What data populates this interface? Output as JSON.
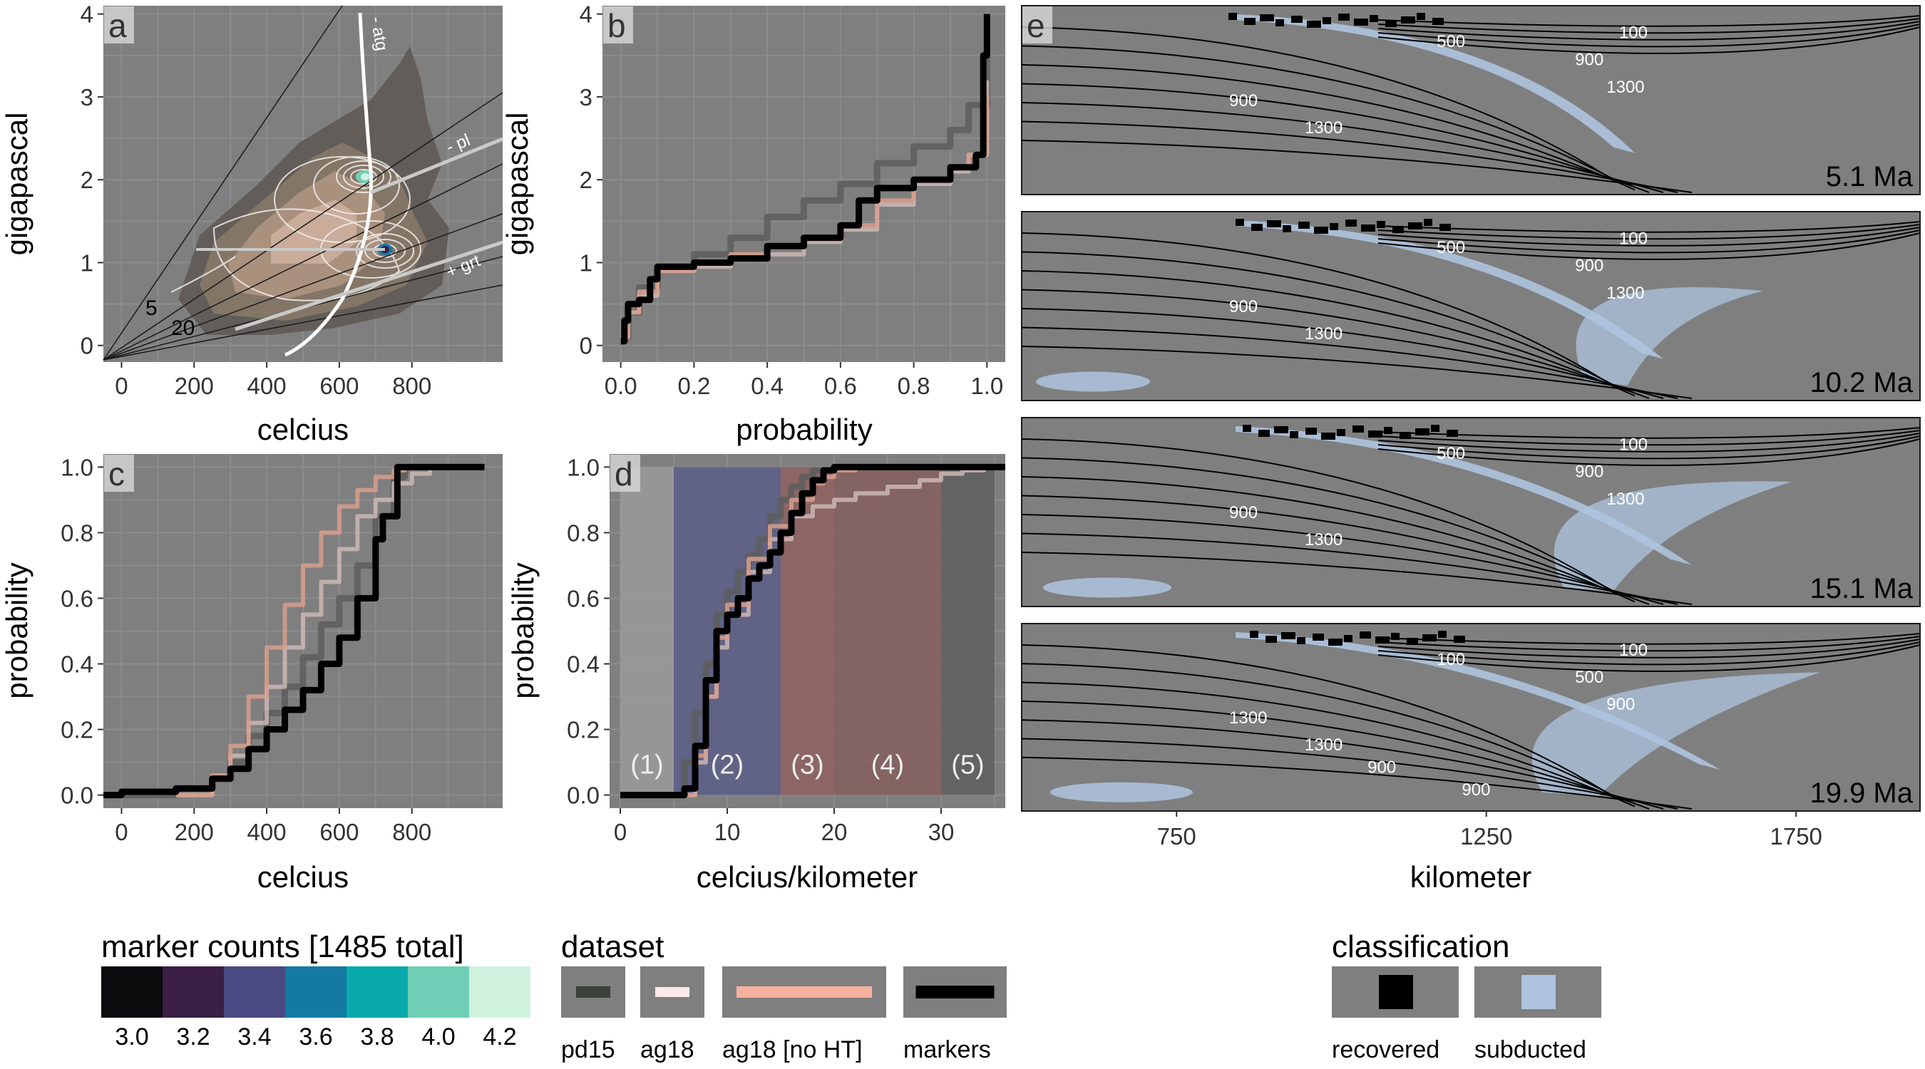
{
  "chart_data": [
    {
      "panel": "a",
      "type": "heatmap",
      "xlabel": "celcius",
      "ylabel": "gigapascal",
      "xlim": [
        -50,
        1050
      ],
      "ylim": [
        -0.2,
        4.1
      ],
      "xticks": [
        0,
        200,
        400,
        600,
        800
      ],
      "yticks": [
        0,
        1,
        2,
        3,
        4
      ],
      "grid": true,
      "reaction_labels": [
        "- atg",
        "- pl",
        "+ grt"
      ],
      "geotherm_labels": [
        "5",
        "20"
      ],
      "density_peaks": [
        {
          "x": 680,
          "y": 2.1
        },
        {
          "x": 720,
          "y": 1.15
        }
      ]
    },
    {
      "panel": "b",
      "type": "line",
      "xlabel": "probability",
      "ylabel": "gigapascal",
      "xlim": [
        -0.05,
        1.05
      ],
      "ylim": [
        -0.2,
        4.1
      ],
      "xticks": [
        0.0,
        0.2,
        0.4,
        0.6,
        0.8,
        1.0
      ],
      "yticks": [
        0,
        1,
        2,
        3,
        4
      ],
      "grid": true,
      "series": [
        {
          "name": "pd15",
          "x": [
            0.0,
            0.02,
            0.05,
            0.1,
            0.2,
            0.3,
            0.4,
            0.5,
            0.6,
            0.7,
            0.8,
            0.9,
            0.95,
            1.0
          ],
          "y": [
            0.1,
            0.4,
            0.7,
            0.95,
            1.1,
            1.3,
            1.55,
            1.75,
            1.95,
            2.2,
            2.4,
            2.6,
            2.9,
            3.7
          ]
        },
        {
          "name": "ag18",
          "x": [
            0.0,
            0.02,
            0.05,
            0.1,
            0.2,
            0.3,
            0.4,
            0.5,
            0.6,
            0.7,
            0.8,
            0.9,
            0.95,
            1.0
          ],
          "y": [
            0.1,
            0.4,
            0.6,
            0.9,
            0.95,
            1.05,
            1.1,
            1.25,
            1.4,
            1.7,
            1.95,
            2.1,
            2.3,
            3.2
          ]
        },
        {
          "name": "ag18 [no HT]",
          "x": [
            0.0,
            0.02,
            0.05,
            0.1,
            0.2,
            0.3,
            0.4,
            0.5,
            0.6,
            0.7,
            0.8,
            0.9,
            0.95,
            1.0
          ],
          "y": [
            0.1,
            0.4,
            0.65,
            0.9,
            1.0,
            1.1,
            1.2,
            1.3,
            1.45,
            1.75,
            2.0,
            2.15,
            2.3,
            3.0
          ]
        },
        {
          "name": "markers",
          "x": [
            0.0,
            0.01,
            0.02,
            0.05,
            0.08,
            0.1,
            0.2,
            0.3,
            0.4,
            0.5,
            0.6,
            0.65,
            0.7,
            0.8,
            0.9,
            0.97,
            0.99,
            1.0
          ],
          "y": [
            0.05,
            0.3,
            0.5,
            0.55,
            0.8,
            0.95,
            1.0,
            1.05,
            1.2,
            1.3,
            1.45,
            1.75,
            1.9,
            2.0,
            2.15,
            2.3,
            3.5,
            4.0
          ]
        }
      ]
    },
    {
      "panel": "c",
      "type": "line",
      "xlabel": "celcius",
      "ylabel": "probability",
      "xlim": [
        -50,
        1050
      ],
      "ylim": [
        -0.04,
        1.04
      ],
      "xticks": [
        0,
        200,
        400,
        600,
        800
      ],
      "yticks": [
        0.0,
        0.2,
        0.4,
        0.6,
        0.8,
        1.0
      ],
      "grid": true,
      "series": [
        {
          "name": "pd15",
          "x": [
            -50,
            150,
            250,
            300,
            350,
            400,
            450,
            500,
            550,
            600,
            650,
            700,
            750,
            780,
            900,
            1000
          ],
          "y": [
            0.0,
            0.02,
            0.05,
            0.1,
            0.18,
            0.25,
            0.33,
            0.42,
            0.52,
            0.6,
            0.7,
            0.85,
            0.97,
            1.0,
            1.0,
            1.0
          ]
        },
        {
          "name": "ag18",
          "x": [
            150,
            250,
            300,
            350,
            400,
            450,
            500,
            550,
            600,
            650,
            700,
            750,
            800,
            850
          ],
          "y": [
            0.0,
            0.05,
            0.12,
            0.22,
            0.33,
            0.45,
            0.55,
            0.65,
            0.75,
            0.85,
            0.9,
            0.95,
            0.98,
            1.0
          ]
        },
        {
          "name": "ag18 [no HT]",
          "x": [
            150,
            250,
            300,
            350,
            400,
            450,
            500,
            550,
            600,
            650,
            700,
            750,
            780
          ],
          "y": [
            0.0,
            0.06,
            0.15,
            0.3,
            0.45,
            0.58,
            0.7,
            0.8,
            0.88,
            0.93,
            0.97,
            0.99,
            1.0
          ]
        },
        {
          "name": "markers",
          "x": [
            -50,
            0,
            150,
            250,
            300,
            350,
            400,
            450,
            500,
            550,
            600,
            650,
            700,
            720,
            760,
            1000
          ],
          "y": [
            0.0,
            0.01,
            0.02,
            0.05,
            0.08,
            0.14,
            0.2,
            0.26,
            0.32,
            0.4,
            0.48,
            0.6,
            0.78,
            0.85,
            1.0,
            1.0
          ]
        }
      ]
    },
    {
      "panel": "d",
      "type": "line",
      "xlabel": "celcius/kilometer",
      "ylabel": "probability",
      "xlim": [
        -1,
        36
      ],
      "ylim": [
        -0.04,
        1.04
      ],
      "xticks": [
        0,
        10,
        20,
        30
      ],
      "yticks": [
        0.0,
        0.2,
        0.4,
        0.6,
        0.8,
        1.0
      ],
      "grid": true,
      "regimes": [
        {
          "label": "(1)",
          "from": 0,
          "to": 5,
          "color": "#9a9a9a"
        },
        {
          "label": "(2)",
          "from": 5,
          "to": 15,
          "color": "#5a5e86"
        },
        {
          "label": "(3)",
          "from": 15,
          "to": 20,
          "color": "#8f6060"
        },
        {
          "label": "(4)",
          "from": 20,
          "to": 30,
          "color": "#855e5e"
        },
        {
          "label": "(5)",
          "from": 30,
          "to": 35,
          "color": "#5e5e5e"
        }
      ],
      "series": [
        {
          "name": "pd15",
          "x": [
            0,
            5,
            6,
            7,
            8,
            9,
            10,
            11,
            12,
            13,
            14,
            15,
            16,
            17,
            18,
            20,
            25,
            36
          ],
          "y": [
            0.0,
            0.0,
            0.1,
            0.25,
            0.4,
            0.55,
            0.62,
            0.68,
            0.73,
            0.78,
            0.85,
            0.9,
            0.94,
            0.97,
            0.99,
            1.0,
            1.0,
            1.0
          ]
        },
        {
          "name": "ag18",
          "x": [
            6,
            7,
            8,
            9,
            10,
            12,
            14,
            16,
            18,
            20,
            22,
            25,
            28,
            30,
            32,
            34,
            35
          ],
          "y": [
            0.0,
            0.1,
            0.3,
            0.45,
            0.55,
            0.68,
            0.78,
            0.85,
            0.88,
            0.9,
            0.92,
            0.94,
            0.96,
            0.98,
            0.99,
            1.0,
            1.0
          ]
        },
        {
          "name": "ag18 [no HT]",
          "x": [
            6,
            7,
            8,
            9,
            10,
            12,
            14,
            16,
            18,
            19,
            20,
            22
          ],
          "y": [
            0.0,
            0.12,
            0.3,
            0.48,
            0.58,
            0.72,
            0.82,
            0.9,
            0.95,
            0.97,
            0.99,
            1.0
          ]
        },
        {
          "name": "markers",
          "x": [
            0,
            6,
            7,
            8,
            9,
            10,
            11,
            12,
            13,
            14,
            15,
            16,
            17,
            18,
            19,
            20,
            25,
            36
          ],
          "y": [
            0.0,
            0.02,
            0.15,
            0.35,
            0.5,
            0.55,
            0.6,
            0.66,
            0.7,
            0.74,
            0.8,
            0.86,
            0.92,
            0.96,
            0.99,
            1.0,
            1.0,
            1.0
          ]
        }
      ]
    },
    {
      "panel": "e",
      "type": "scatter",
      "xlabel": "kilometer",
      "xticks": [
        750,
        1250,
        1750
      ],
      "xlim": [
        500,
        1950
      ],
      "snapshots": [
        {
          "time": "5.1 Ma",
          "isotherms": [
            "100",
            "500",
            "900",
            "1300",
            "900",
            "1300"
          ]
        },
        {
          "time": "10.2 Ma",
          "isotherms": [
            "100",
            "500",
            "900",
            "1300",
            "900",
            "1300"
          ]
        },
        {
          "time": "15.1 Ma",
          "isotherms": [
            "100",
            "500",
            "900",
            "1300",
            "900",
            "1300"
          ]
        },
        {
          "time": "19.9 Ma",
          "isotherms": [
            "100",
            "100",
            "500",
            "900",
            "1300",
            "1300",
            "900",
            "900"
          ]
        }
      ]
    }
  ],
  "legends": {
    "marker_counts": {
      "title": "marker counts [1485 total]",
      "colors": [
        "#0b0a0d",
        "#3a1e45",
        "#4a4a82",
        "#1479a3",
        "#08aaab",
        "#6fcfb6",
        "#cff3de"
      ],
      "labels": [
        "3.0",
        "3.2",
        "3.4",
        "3.6",
        "3.8",
        "4.0",
        "4.2"
      ]
    },
    "dataset": {
      "title": "dataset",
      "items": [
        {
          "label": "pd15",
          "color": "#3c3f3a"
        },
        {
          "label": "ag18",
          "color": "#fbe8ea"
        },
        {
          "label": "ag18 [no HT]",
          "color": "#f4b19e"
        },
        {
          "label": "markers",
          "color": "#000000"
        }
      ]
    },
    "classification": {
      "title": "classification",
      "items": [
        {
          "label": "recovered",
          "color": "#000000"
        },
        {
          "label": "subducted",
          "color": "#aec4df"
        }
      ]
    }
  },
  "panel_tags": [
    "a",
    "b",
    "c",
    "d",
    "e"
  ],
  "colors": {
    "panel_bg": "#7f7f7f",
    "grid": "#8c8c8c",
    "pd15": "#5d5d5d",
    "ag18": "#cbb7b4",
    "ag18_no_ht": "#d79e8c",
    "markers": "#000000",
    "subducted": "#aec4df"
  }
}
